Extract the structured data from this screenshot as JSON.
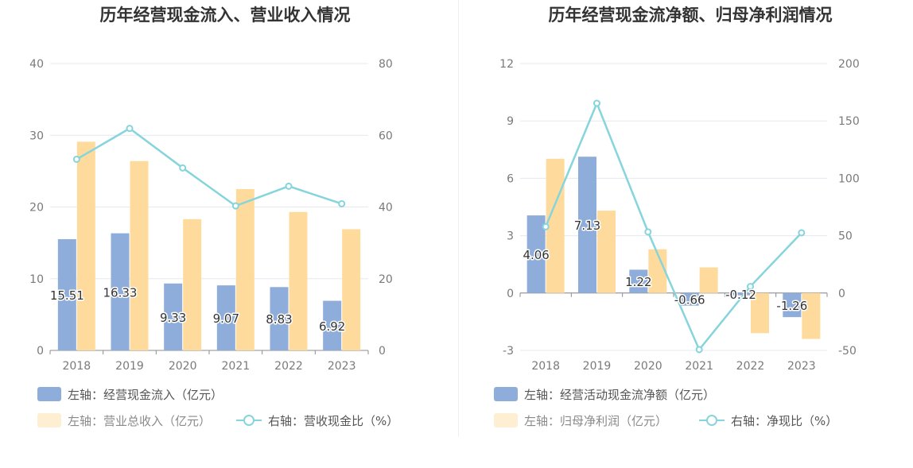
{
  "charts": [
    {
      "id": "left",
      "title": "历年经营现金流入、营业收入情况",
      "categories": [
        "2018",
        "2019",
        "2020",
        "2021",
        "2022",
        "2023"
      ],
      "left_axis": {
        "min": 0,
        "max": 40,
        "ticks": [
          0,
          10,
          20,
          30,
          40
        ]
      },
      "right_axis": {
        "min": 0,
        "max": 80,
        "ticks": [
          0,
          20,
          40,
          60,
          80
        ]
      },
      "series": [
        {
          "name": "左轴：经营现金流入（亿元）",
          "type": "bar",
          "axis": "left",
          "color": "#8eaddb",
          "values": [
            15.51,
            16.33,
            9.33,
            9.07,
            8.83,
            6.92
          ],
          "labels": [
            "15.51",
            "16.33",
            "9.33",
            "9.07",
            "8.83",
            "6.92"
          ]
        },
        {
          "name": "左轴：营业总收入（亿元）",
          "type": "bar",
          "axis": "left",
          "color": "#fedb9c",
          "values": [
            29.1,
            26.4,
            18.3,
            22.5,
            19.3,
            16.9
          ]
        },
        {
          "name": "右轴：营收现金比（%）",
          "type": "line",
          "axis": "right",
          "color": "#86d4dc",
          "values": [
            53.3,
            61.9,
            50.9,
            40.3,
            45.8,
            40.9
          ]
        }
      ]
    },
    {
      "id": "right",
      "title": "历年经营现金流净额、归母净利润情况",
      "categories": [
        "2018",
        "2019",
        "2020",
        "2021",
        "2022",
        "2023"
      ],
      "left_axis": {
        "min": -3,
        "max": 12,
        "ticks": [
          -3,
          0,
          3,
          6,
          9,
          12
        ]
      },
      "right_axis": {
        "min": -50,
        "max": 200,
        "ticks": [
          -50,
          0,
          50,
          100,
          150,
          200
        ]
      },
      "series": [
        {
          "name": "左轴：经营活动现金流净额（亿元）",
          "type": "bar",
          "axis": "left",
          "color": "#8eaddb",
          "values": [
            4.06,
            7.13,
            1.22,
            -0.66,
            -0.12,
            -1.26
          ],
          "labels": [
            "4.06",
            "7.13",
            "1.22",
            "-0.66",
            "-0.12",
            "-1.26"
          ]
        },
        {
          "name": "左轴：归母净利润（亿元）",
          "type": "bar",
          "axis": "left",
          "color": "#fedb9c",
          "values": [
            7.02,
            4.31,
            2.29,
            1.34,
            -2.1,
            -2.4
          ]
        },
        {
          "name": "右轴：净现比（%）",
          "type": "line",
          "axis": "right",
          "color": "#86d4dc",
          "values": [
            57.8,
            165.4,
            53.3,
            -49.3,
            5.7,
            52.5
          ]
        }
      ]
    }
  ]
}
